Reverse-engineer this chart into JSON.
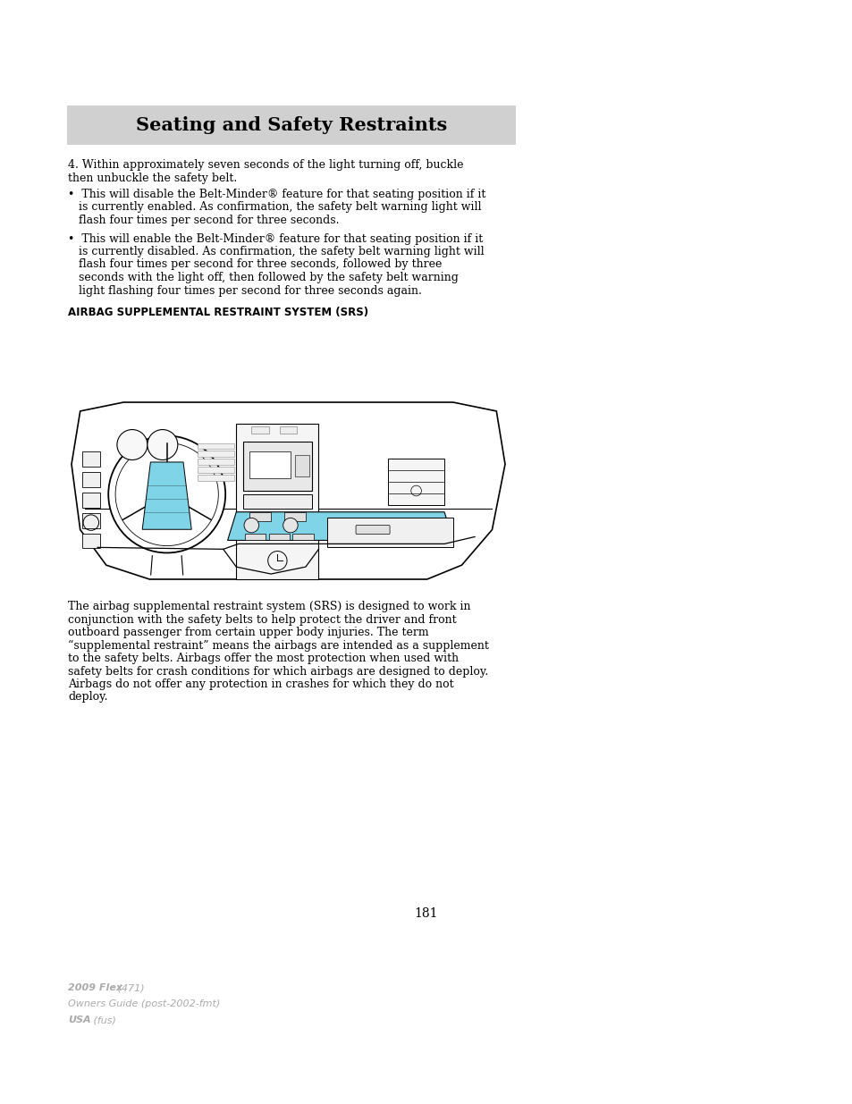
{
  "page_bg": "#ffffff",
  "header_bg": "#d0d0d0",
  "header_text": "Seating and Safety Restraints",
  "header_text_color": "#000000",
  "header_fontsize": 15,
  "body_fontsize": 9.0,
  "section_heading": "AIRBAG SUPPLEMENTAL RESTRAINT SYSTEM (SRS)",
  "section_heading_fontsize": 8.5,
  "para1_line1": "4. Within approximately seven seconds of the light turning off, buckle",
  "para1_line2": "then unbuckle the safety belt.",
  "bullet1_lines": [
    "•  This will disable the Belt-Minder® feature for that seating position if it",
    "   is currently enabled. As confirmation, the safety belt warning light will",
    "   flash four times per second for three seconds."
  ],
  "bullet2_lines": [
    "•  This will enable the Belt-Minder® feature for that seating position if it",
    "   is currently disabled. As confirmation, the safety belt warning light will",
    "   flash four times per second for three seconds, followed by three",
    "   seconds with the light off, then followed by the safety belt warning",
    "   light flashing four times per second for three seconds again."
  ],
  "body_para_lines": [
    "The airbag supplemental restraint system (SRS) is designed to work in",
    "conjunction with the safety belts to help protect the driver and front",
    "outboard passenger from certain upper body injuries. The term",
    "“supplemental restraint” means the airbags are intended as a supplement",
    "to the safety belts. Airbags offer the most protection when used with",
    "safety belts for crash conditions for which airbags are designed to deploy.",
    "Airbags do not offer any protection in crashes for which they do not",
    "deploy."
  ],
  "page_number": "181",
  "footer_line1_bold": "2009 Flex",
  "footer_line1_normal": " (471)",
  "footer_line2": "Owners Guide (post-2002-fmt)",
  "footer_line3_bold": "USA",
  "footer_line3_normal": " (fus)",
  "footer_color": "#aaaaaa",
  "airbag_cyan": "#80d4e8",
  "line_color": "#000000",
  "gray_line": "#888888"
}
